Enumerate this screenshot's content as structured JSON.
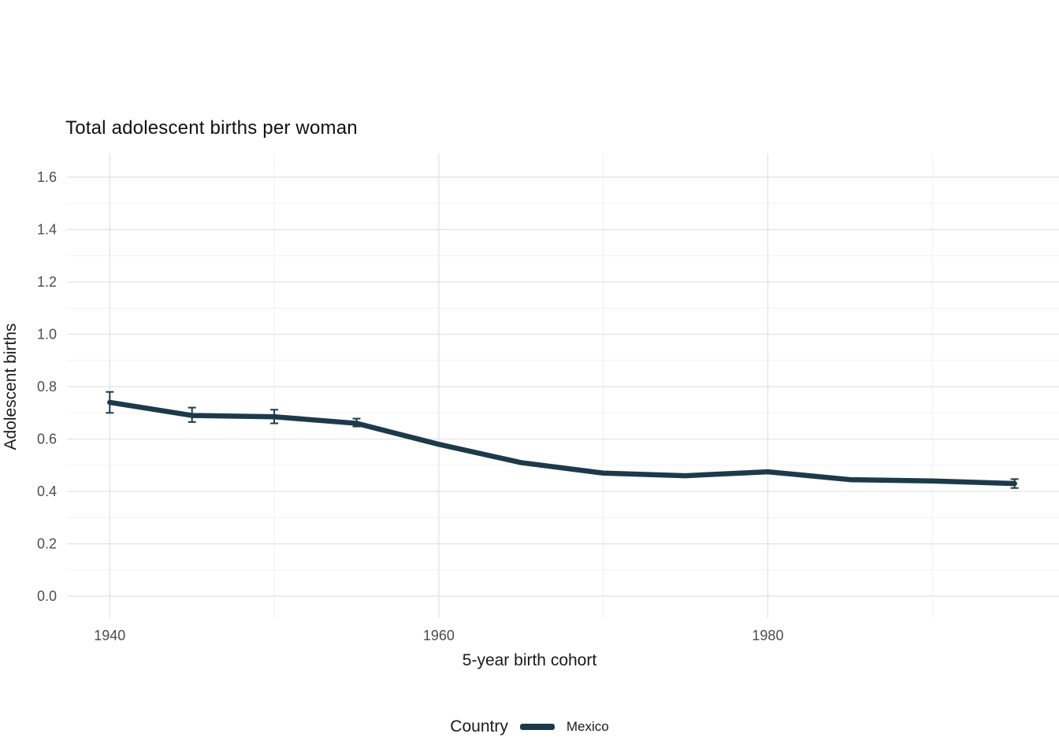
{
  "chart_data": {
    "type": "line",
    "title": "Total adolescent births per woman",
    "xlabel": "5-year birth cohort",
    "ylabel": "Adolescent births",
    "legend_title": "Country",
    "legend_position": "bottom",
    "grid": true,
    "xlim": [
      1937.4,
      1997.7
    ],
    "ylim": [
      -0.084,
      1.69
    ],
    "x_ticks": [
      1940,
      1960,
      1980
    ],
    "x_minor_ticks": [
      1950,
      1970,
      1990
    ],
    "y_ticks": [
      0,
      0.2,
      0.4,
      0.6,
      0.8,
      1,
      1.2,
      1.4,
      1.6
    ],
    "y_minor_ticks": [
      0.1,
      0.3,
      0.5,
      0.7,
      0.9,
      1.1,
      1.3,
      1.5
    ],
    "series": [
      {
        "name": "Mexico",
        "color": "#1c3a4a",
        "x": [
          1940,
          1945,
          1950,
          1955,
          1960,
          1965,
          1970,
          1975,
          1980,
          1985,
          1990,
          1995
        ],
        "y": [
          0.74,
          0.69,
          0.685,
          0.66,
          0.58,
          0.51,
          0.47,
          0.46,
          0.475,
          0.445,
          0.44,
          0.43
        ],
        "y_err_low": [
          0.7,
          0.665,
          0.66,
          0.648,
          null,
          null,
          null,
          null,
          null,
          null,
          null,
          0.413
        ],
        "y_err_high": [
          0.78,
          0.72,
          0.712,
          0.678,
          null,
          null,
          null,
          null,
          null,
          null,
          null,
          0.447
        ]
      }
    ]
  },
  "colors": {
    "line": "#1c3a4a",
    "grid_major": "#e3e3e3",
    "grid_minor": "#f1f1f1",
    "tick_text": "#4d4d4d",
    "text": "#1a1a1a",
    "background": "#ffffff"
  }
}
